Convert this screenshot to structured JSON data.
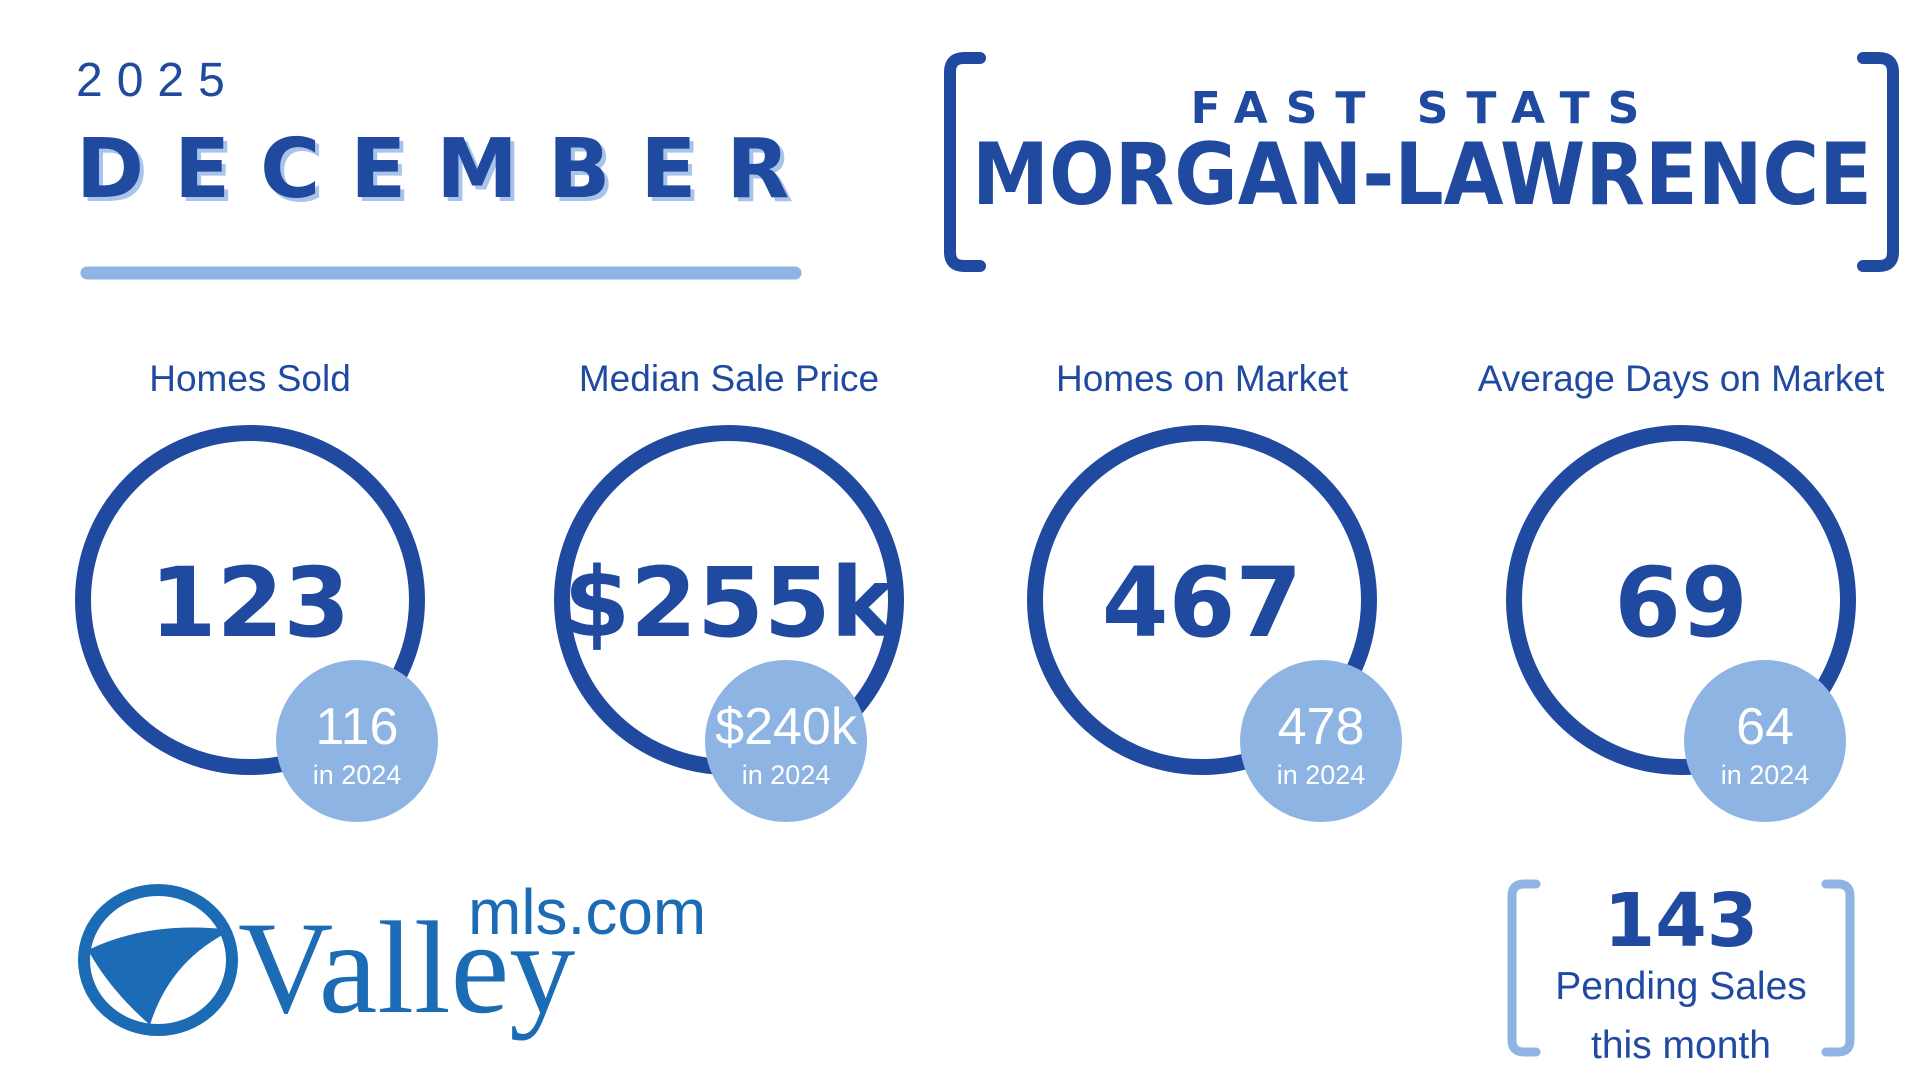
{
  "header": {
    "year": "2025",
    "month": "DECEMBER",
    "kicker": "FAST STATS",
    "area": "MORGAN-LAWRENCE"
  },
  "stats": [
    {
      "label": "Homes Sold",
      "value": "123",
      "prior": "116",
      "prior_label": "in 2024"
    },
    {
      "label": "Median Sale Price",
      "value": "$255k",
      "prior": "$240k",
      "prior_label": "in 2024"
    },
    {
      "label": "Homes on Market",
      "value": "467",
      "prior": "478",
      "prior_label": "in 2024"
    },
    {
      "label": "Average Days on Market",
      "value": "69",
      "prior": "64",
      "prior_label": "in 2024"
    }
  ],
  "pending": {
    "value": "143",
    "line1": "Pending Sales",
    "line2": "this month"
  },
  "logo": {
    "name": "Valley",
    "suffix": "mls.com"
  }
}
